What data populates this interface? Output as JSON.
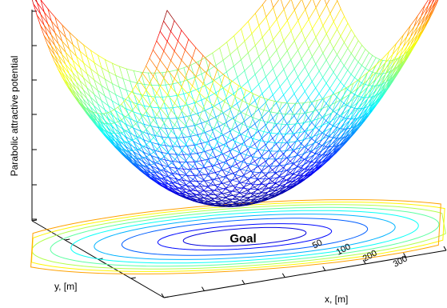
{
  "chart_data": {
    "type": "surface",
    "function": "z = x^2 + y^2 (paraboloid, minimum at goal)",
    "zlabel": "Parabolic attractive potential",
    "xlabel": "x, [m]",
    "ylabel": "y, [m]",
    "goal_label": "Goal",
    "grid": true,
    "colormap": "jet",
    "contour_levels": [
      50,
      100,
      200,
      300
    ],
    "contour_labels": [
      "50",
      "100",
      "200",
      "300"
    ]
  }
}
